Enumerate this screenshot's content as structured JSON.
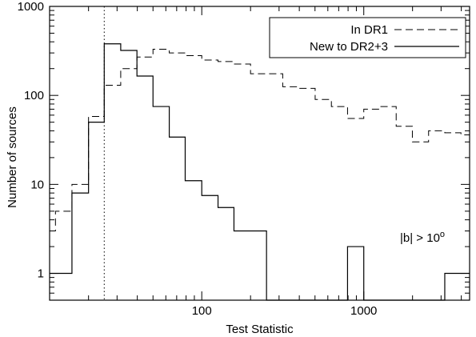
{
  "chart_data": {
    "type": "line",
    "xlabel": "Test Statistic",
    "ylabel": "Number of sources",
    "x_scale": "log",
    "y_scale": "log",
    "xlim": [
      11.5,
      4500
    ],
    "ylim": [
      0.5,
      1000
    ],
    "x_ticks": [
      {
        "value": 100,
        "label": "100"
      },
      {
        "value": 1000,
        "label": "1000"
      }
    ],
    "y_ticks": [
      {
        "value": 1,
        "label": "1"
      },
      {
        "value": 10,
        "label": "10"
      },
      {
        "value": 100,
        "label": "100"
      },
      {
        "value": 1000,
        "label": "1000"
      }
    ],
    "threshold_line": {
      "x": 25,
      "style": "dotted"
    },
    "annotation": {
      "text": "|b| > 10",
      "superscript": "o"
    },
    "legend_position": "top-right",
    "series": [
      {
        "name": "In DR1",
        "style": "dashed",
        "bin_edges": [
          11.5,
          12.5,
          15.8,
          20,
          25,
          31.6,
          39.8,
          50,
          63,
          79,
          100,
          126,
          158,
          200,
          251,
          316,
          398,
          501,
          631,
          794,
          1000,
          1259,
          1585,
          1995,
          2512,
          3162,
          3981,
          4500
        ],
        "values": [
          3,
          5,
          10,
          58,
          130,
          200,
          270,
          330,
          300,
          280,
          250,
          240,
          225,
          175,
          175,
          125,
          120,
          90,
          75,
          55,
          70,
          75,
          45,
          30,
          40,
          38,
          36
        ]
      },
      {
        "name": "New to DR2+3",
        "style": "solid",
        "bin_edges": [
          11.5,
          15.8,
          20,
          25,
          31.6,
          39.8,
          50,
          63,
          79,
          100,
          126,
          158,
          200,
          251,
          316,
          398,
          501,
          631,
          794,
          1000,
          1259,
          1585,
          1995,
          2512,
          3162,
          3981,
          4500
        ],
        "values": [
          1,
          8,
          50,
          380,
          320,
          165,
          75,
          34,
          11,
          7.5,
          5.5,
          3,
          3,
          0,
          0,
          0,
          0,
          0,
          2,
          0,
          0,
          0,
          0,
          0,
          1,
          1
        ]
      }
    ]
  }
}
